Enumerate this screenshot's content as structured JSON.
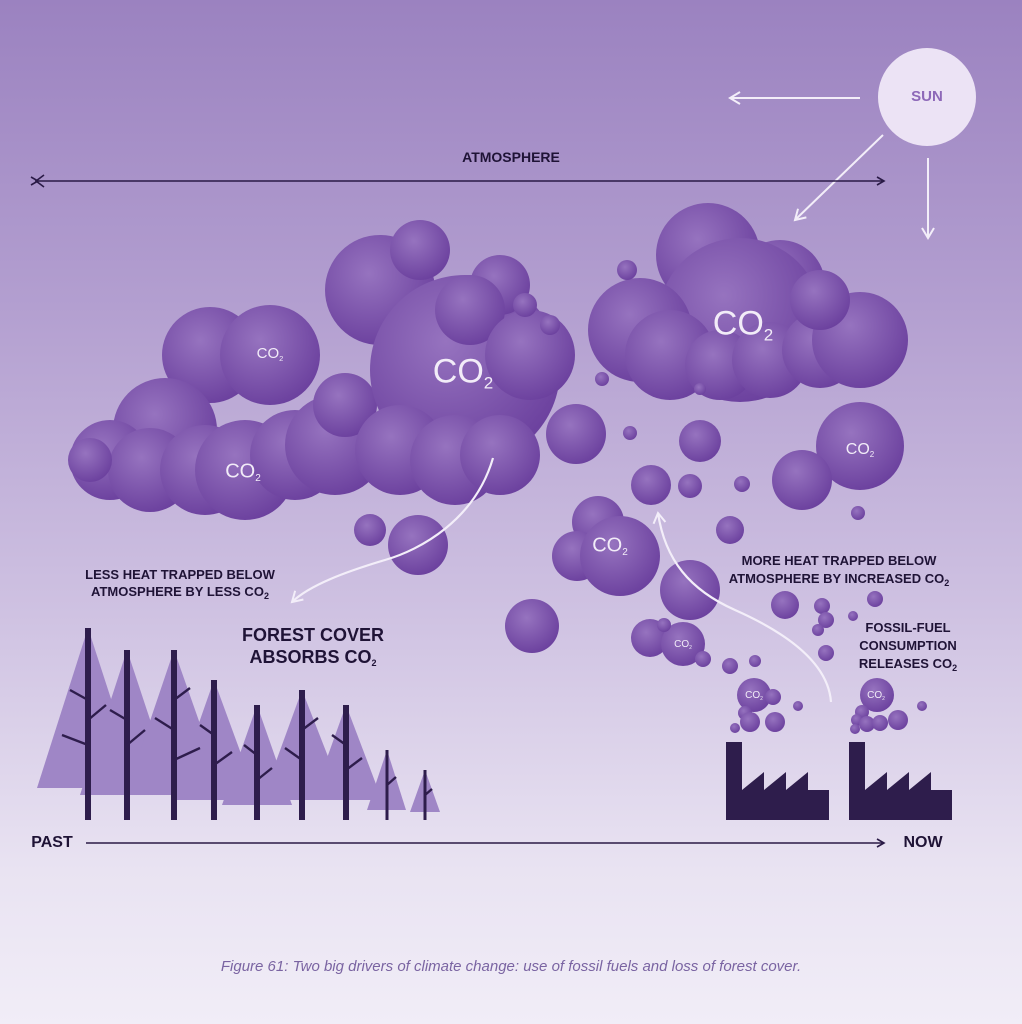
{
  "sun": {
    "label": "SUN"
  },
  "atmosphere": {
    "label": "ATMOSPHERE"
  },
  "timeline": {
    "start_label": "PAST",
    "end_label": "NOW"
  },
  "co2_text": {
    "main": "CO",
    "sub": "2"
  },
  "labels": {
    "less_heat": {
      "line1": "LESS HEAT TRAPPED BELOW",
      "line2": "ATMOSPHERE BY LESS CO",
      "sub": "2"
    },
    "forest": {
      "line1": "FOREST COVER",
      "line2": "ABSORBS CO",
      "sub": "2"
    },
    "more_heat": {
      "line1": "MORE HEAT TRAPPED BELOW",
      "line2": "ATMOSPHERE BY INCREASED CO",
      "sub": "2"
    },
    "fossil": {
      "line1": "FOSSIL-FUEL",
      "line2": "CONSUMPTION",
      "line3": "RELEASES CO",
      "sub": "2"
    }
  },
  "caption": "Figure 61:  Two big drivers of climate change: use of fossil fuels and loss of forest cover.",
  "colors": {
    "cloud_dark": "#6a3f9d",
    "cloud_light": "#9673bf",
    "sun": "#ece3f5",
    "ink": "#2a1a46",
    "arrow_light": "#f3eef9",
    "tree_light": "#9f86c6",
    "caption": "#7a64a2"
  }
}
